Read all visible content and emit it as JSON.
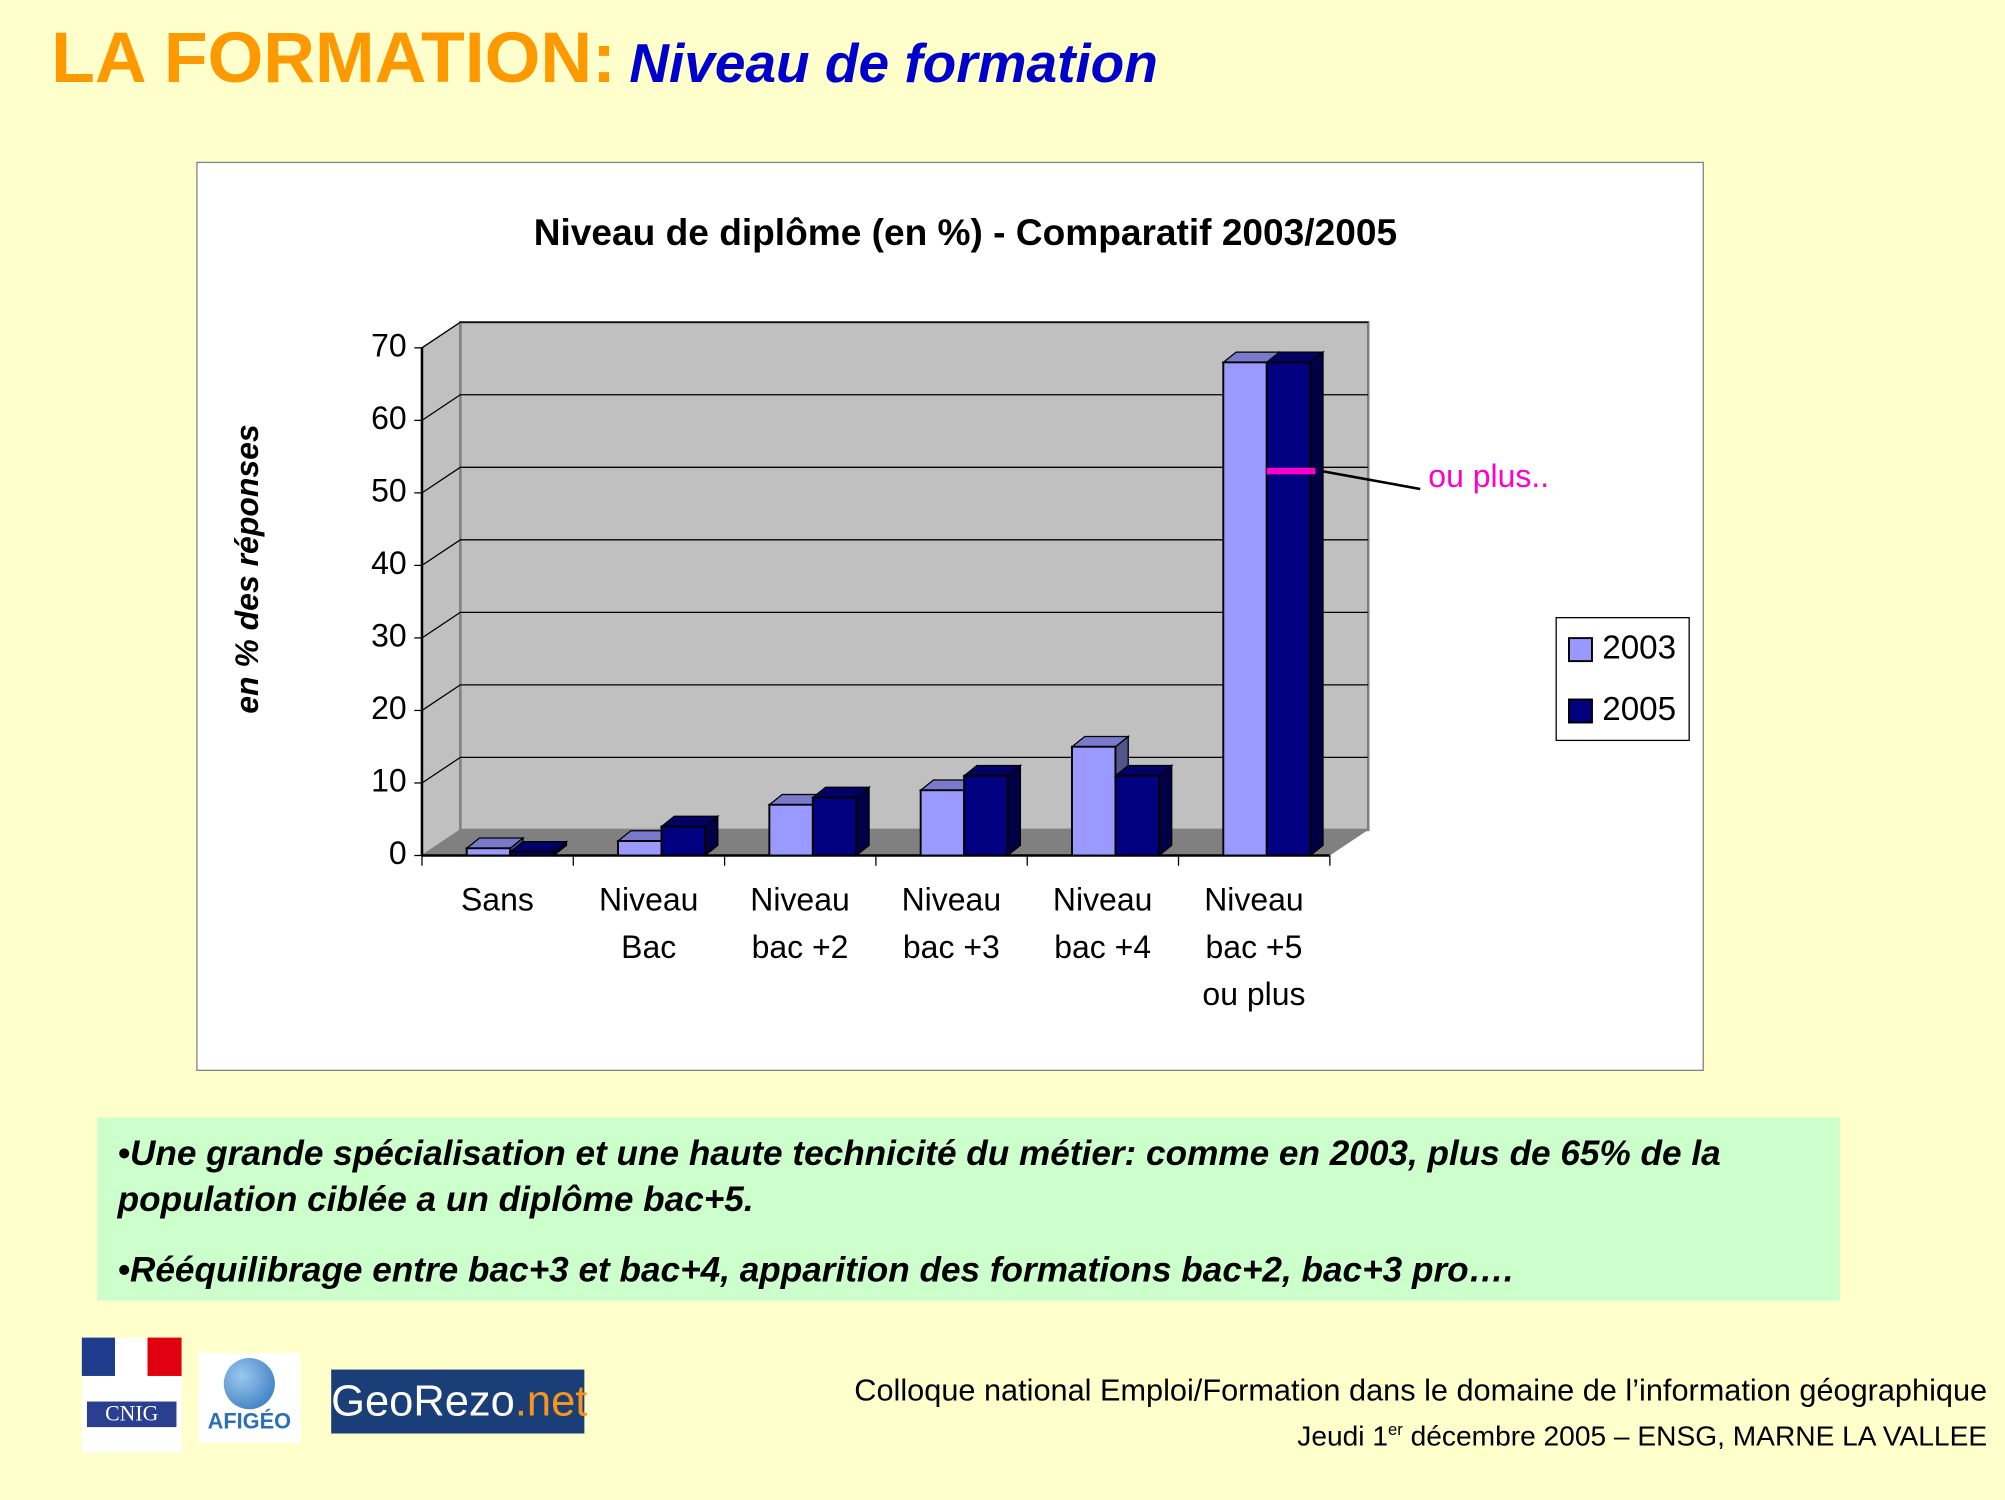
{
  "header": {
    "title": "LA FORMATION:",
    "subtitle": "Niveau de formation"
  },
  "chart_data": {
    "type": "bar",
    "title": "Niveau de diplôme (en %) - Comparatif 2003/2005",
    "y_label": "en % des réponses",
    "categories": [
      "Sans",
      "Niveau\nBac",
      "Niveau\nbac +2",
      "Niveau\nbac +3",
      "Niveau\nbac +4",
      "Niveau\nbac +5\nou plus"
    ],
    "series": [
      {
        "name": "2003",
        "color": "#9999ff",
        "values": [
          1,
          2,
          7,
          9,
          15,
          68
        ]
      },
      {
        "name": "2005",
        "color": "#000080",
        "values": [
          0.5,
          4,
          8,
          11,
          11,
          68
        ]
      }
    ],
    "ylim": [
      0,
      70
    ],
    "yticks": [
      0,
      10,
      20,
      30,
      40,
      50,
      60,
      70
    ],
    "grid": true,
    "legend": "right",
    "annotation": {
      "text": "ou plus..",
      "value": 53,
      "color": "#ff00cc"
    }
  },
  "notes": [
    "•Une grande spécialisation et une haute technicité du métier: comme en 2003, plus de 65% de la population ciblée a un diplôme bac+5.",
    "•Rééquilibrage entre bac+3 et bac+4, apparition des formations bac+2, bac+3 pro…."
  ],
  "footer": {
    "line1": "Colloque national Emploi/Formation dans le domaine de l’information géographique",
    "line2_a": "Jeudi 1",
    "line2_sup": "er",
    "line2_b": " décembre 2005 – ENSG, MARNE LA VALLEE"
  },
  "logos": {
    "cnig": "CNIG",
    "afigeo": "AFIGÉO",
    "georezo_a": "GeoRezo",
    "georezo_b": ".net"
  }
}
